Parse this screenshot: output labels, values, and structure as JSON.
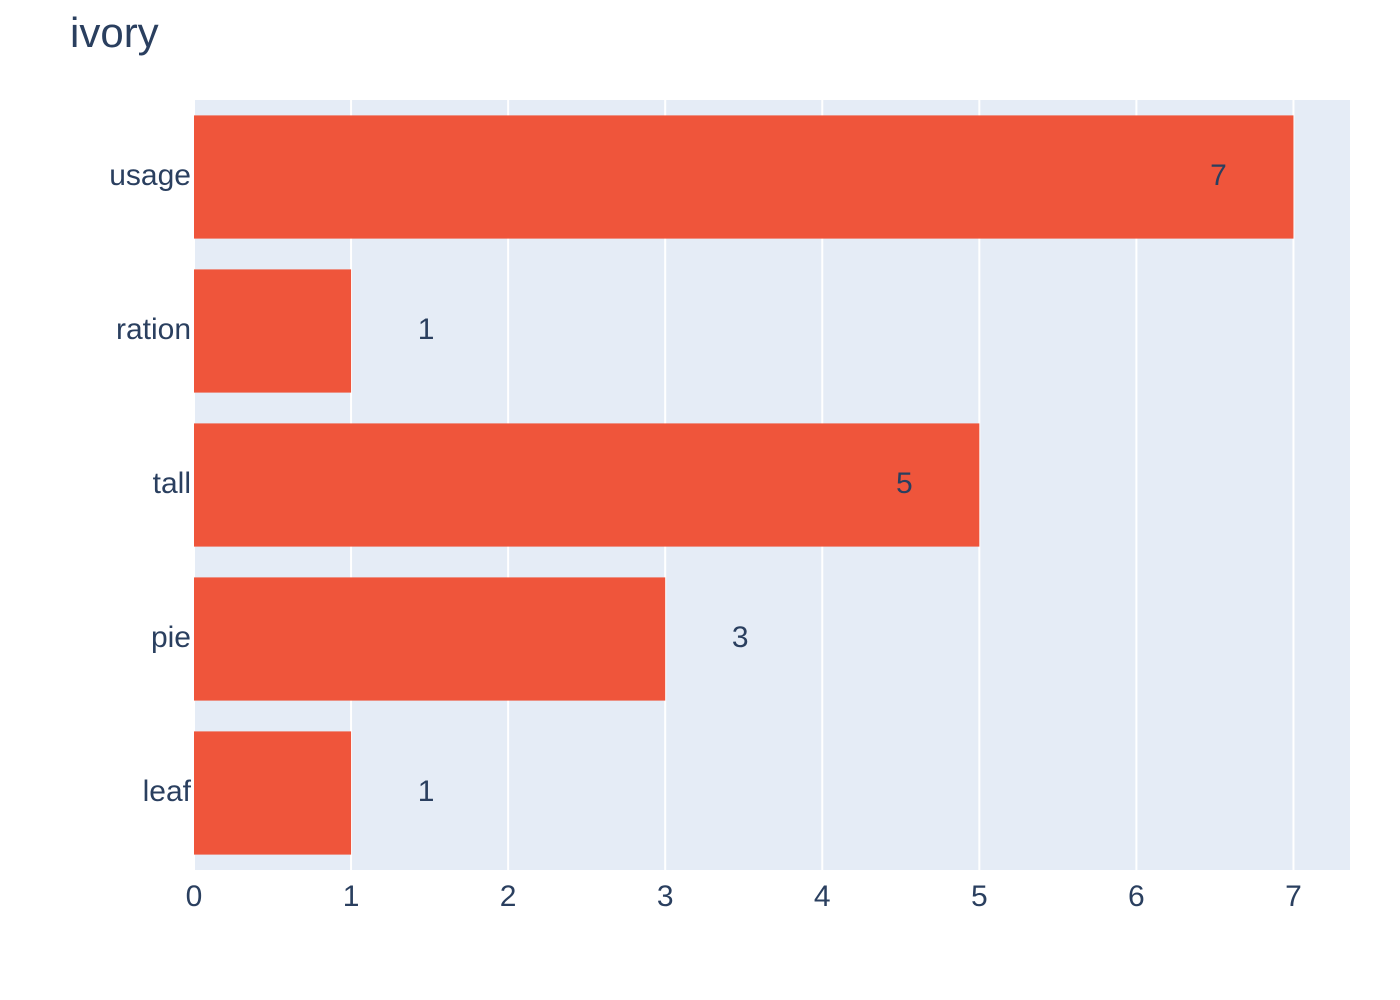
{
  "chart_data": {
    "type": "bar",
    "orientation": "h",
    "title": "ivory",
    "categories": [
      "usage",
      "ration",
      "tall",
      "pie",
      "leaf"
    ],
    "values": [
      7,
      1,
      5,
      3,
      1
    ],
    "textposition": [
      "inside",
      "outside",
      "inside",
      "outside",
      "outside"
    ],
    "color": "#EF553B",
    "xlim": [
      0,
      7.36
    ],
    "xticks": [
      0,
      1,
      2,
      3,
      4,
      5,
      6,
      7
    ],
    "grid": true
  }
}
